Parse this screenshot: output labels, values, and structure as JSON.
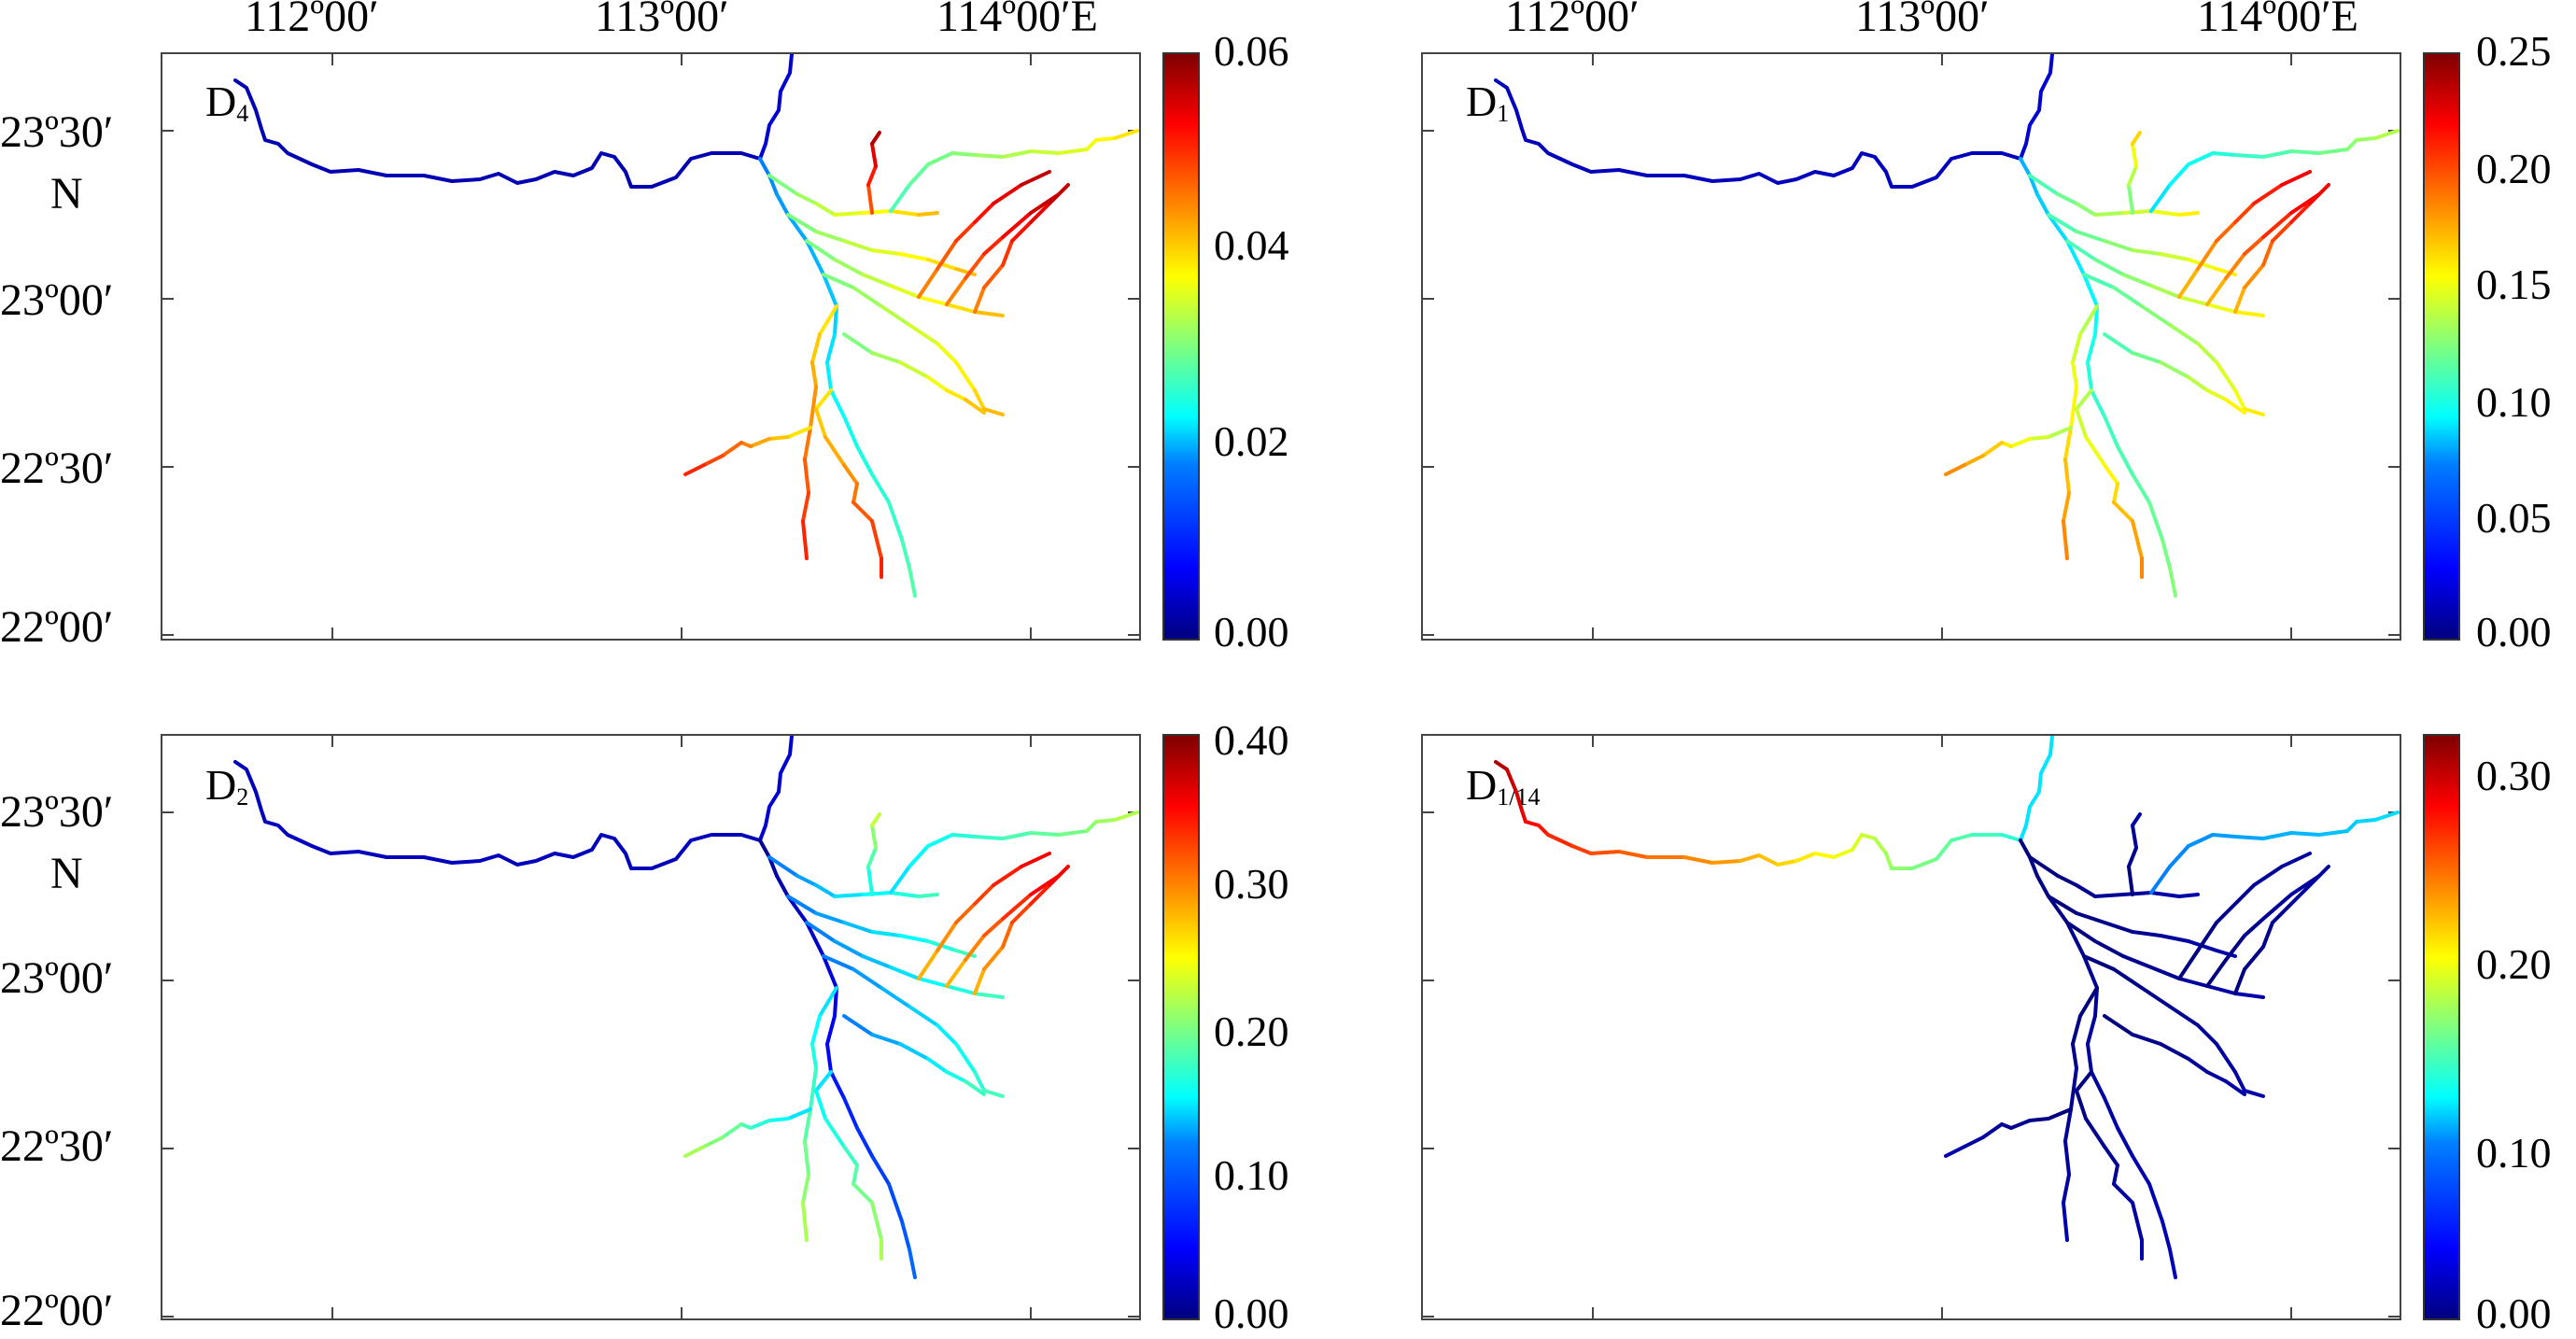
{
  "figure": {
    "lon_labels": [
      "112º00′",
      "113º00′",
      "114º00′E"
    ],
    "lat_labels": [
      "23º30′",
      "23º00′",
      "22º30′",
      "22º00′"
    ],
    "n_label": "N",
    "panels": [
      {
        "title_main": "D",
        "title_sub": "4",
        "colorbar_ticks": [
          "0.06",
          "0.04",
          "0.02",
          "0.00"
        ],
        "shows_lon": true,
        "shows_lat": true
      },
      {
        "title_main": "D",
        "title_sub": "1",
        "colorbar_ticks": [
          "0.25",
          "0.20",
          "0.15",
          "0.10",
          "0.05",
          "0.00"
        ],
        "shows_lon": true,
        "shows_lat": false
      },
      {
        "title_main": "D",
        "title_sub": "2",
        "colorbar_ticks": [
          "0.40",
          "0.30",
          "0.20",
          "0.10",
          "0.00"
        ],
        "shows_lon": false,
        "shows_lat": true
      },
      {
        "title_main": "D",
        "title_sub": "1/14",
        "colorbar_ticks": [
          "0.30",
          "0.20",
          "0.10",
          "0.00"
        ],
        "shows_lon": false,
        "shows_lat": false
      }
    ]
  },
  "colormap": {
    "name": "jet",
    "stops": [
      "#00007f",
      "#0000ff",
      "#007fff",
      "#00ffff",
      "#7fff7f",
      "#ffff00",
      "#ff7f00",
      "#ff0000",
      "#7f0000"
    ]
  }
}
